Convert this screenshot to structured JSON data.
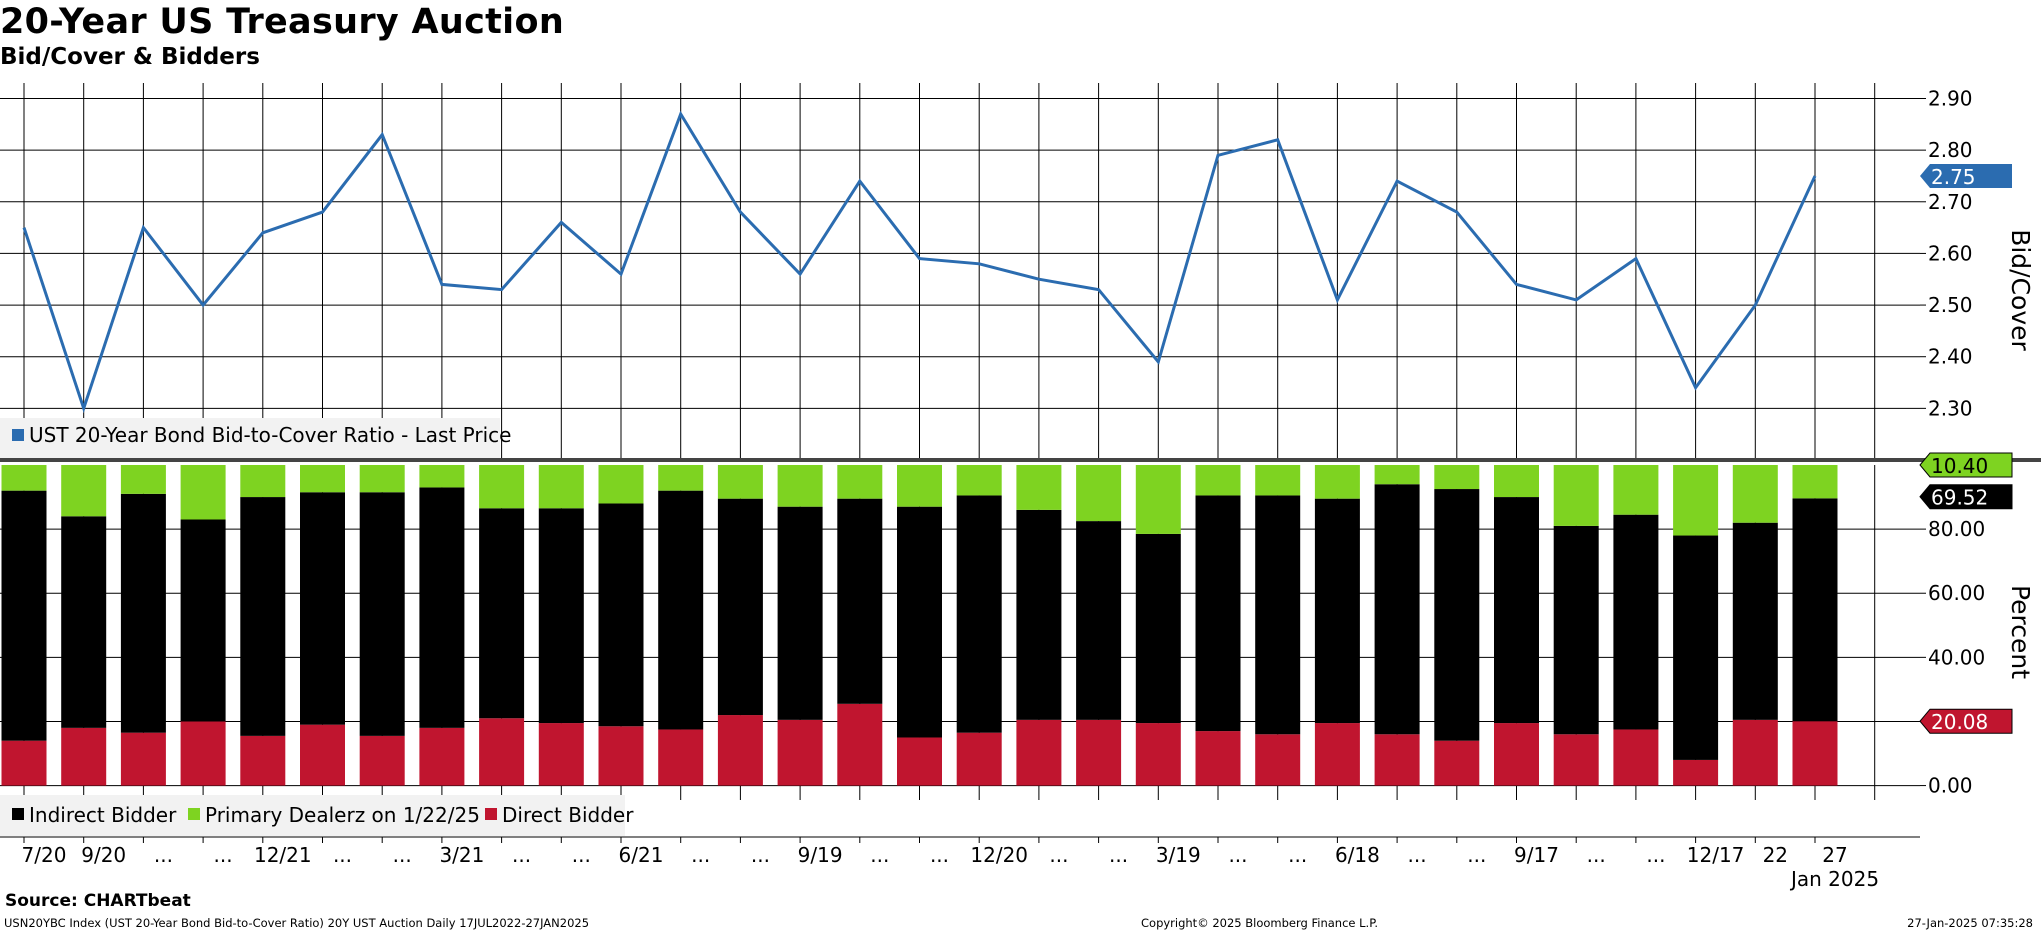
{
  "title": "20-Year US Treasury Auction",
  "subtitle": "Bid/Cover & Bidders",
  "colors": {
    "line": "#2b6cb0",
    "indirect": "#000000",
    "primary": "#7ed321",
    "direct": "#c0152f",
    "grid": "#000000"
  },
  "chart_data": [
    {
      "type": "line",
      "title": "Bid/Cover",
      "ylabel": "Bid/Cover",
      "ylim": [
        2.2,
        2.93
      ],
      "yticks": [
        "2.30",
        "2.40",
        "2.50",
        "2.60",
        "2.70",
        "2.80",
        "2.90"
      ],
      "legend": "UST 20-Year Bond Bid-to-Cover Ratio - Last Price",
      "last_value_label": "2.75",
      "series": [
        {
          "name": "UST 20-Year Bond Bid-to-Cover Ratio - Last Price",
          "values": [
            2.65,
            2.3,
            2.65,
            2.5,
            2.64,
            2.68,
            2.83,
            2.54,
            2.53,
            2.66,
            2.56,
            2.87,
            2.68,
            2.56,
            2.74,
            2.59,
            2.58,
            2.55,
            2.53,
            2.39,
            2.79,
            2.82,
            2.51,
            2.74,
            2.68,
            2.54,
            2.51,
            2.59,
            2.34,
            2.5,
            2.75
          ]
        }
      ]
    },
    {
      "type": "bar",
      "stacked": true,
      "title": "Bidders",
      "ylabel": "Percent",
      "ylim": [
        -4.5,
        100
      ],
      "yticks": [
        "0.00",
        "20.00",
        "40.00",
        "60.00",
        "80.00"
      ],
      "last_value_labels": {
        "primary": "10.40",
        "indirect": "69.52",
        "direct": "20.08"
      },
      "series": [
        {
          "name": "Direct Bidder",
          "values": [
            14.0,
            18.0,
            16.5,
            20.0,
            15.5,
            19.0,
            15.5,
            18.0,
            21.0,
            19.5,
            18.5,
            17.5,
            22.0,
            20.5,
            25.5,
            15.0,
            16.5,
            20.5,
            20.5,
            19.5,
            17.0,
            16.0,
            19.5,
            16.0,
            14.0,
            19.5,
            16.0,
            17.5,
            8.0,
            20.5,
            20.08
          ]
        },
        {
          "name": "Indirect Bidder",
          "values": [
            78.0,
            66.0,
            74.5,
            63.0,
            74.5,
            72.5,
            76.0,
            75.0,
            65.5,
            67.0,
            69.5,
            74.5,
            67.5,
            66.5,
            64.0,
            72.0,
            74.0,
            65.5,
            62.0,
            59.0,
            73.5,
            74.5,
            70.0,
            78.0,
            78.5,
            70.5,
            65.0,
            67.0,
            70.0,
            61.5,
            69.52
          ]
        },
        {
          "name": "Primary Dealerz on 1/22/25",
          "values": [
            8.0,
            16.0,
            9.0,
            17.0,
            10.0,
            8.5,
            8.5,
            7.0,
            13.5,
            13.5,
            12.0,
            8.0,
            10.5,
            13.0,
            10.5,
            13.0,
            9.5,
            14.0,
            17.5,
            21.5,
            9.5,
            9.5,
            10.5,
            6.0,
            7.5,
            10.0,
            19.0,
            15.5,
            22.0,
            18.0,
            10.4
          ]
        }
      ]
    }
  ],
  "xaxis": {
    "labels": [
      "7/20",
      "9/20",
      "...",
      "...",
      "12/21",
      "...",
      "...",
      "3/21",
      "...",
      "...",
      "6/21",
      "...",
      "...",
      "9/19",
      "...",
      "...",
      "12/20",
      "...",
      "...",
      "3/19",
      "...",
      "...",
      "6/18",
      "...",
      "...",
      "9/17",
      "...",
      "...",
      "12/17",
      "22",
      "27"
    ],
    "sublabel": "Jan 2025"
  },
  "legend_bottom": [
    {
      "label": "Indirect Bidder",
      "color": "#000000"
    },
    {
      "label": "Primary Dealerz on 1/22/25",
      "color": "#7ed321"
    },
    {
      "label": "Direct Bidder",
      "color": "#c0152f"
    }
  ],
  "footer": {
    "source": "Source: CHARTbeat",
    "meta": "USN20YBC Index (UST 20-Year Bond Bid-to-Cover Ratio) 20Y UST Auction  Daily 17JUL2022-27JAN2025",
    "copyright": "Copyright© 2025 Bloomberg Finance L.P.",
    "timestamp": "27-Jan-2025 07:35:28"
  }
}
